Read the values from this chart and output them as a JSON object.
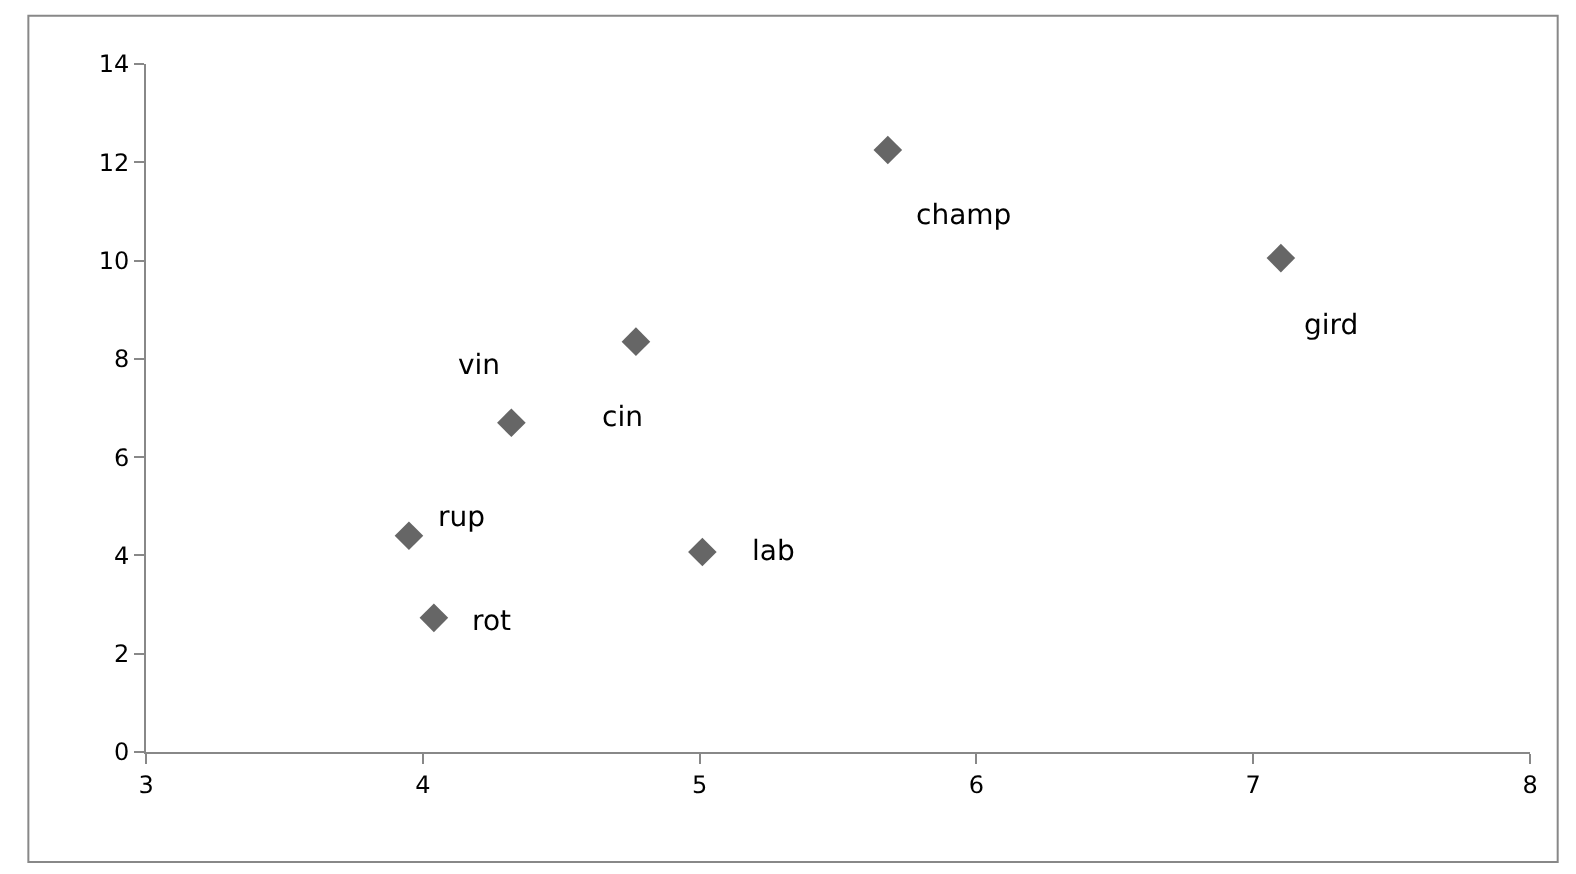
{
  "chart_data": {
    "type": "scatter",
    "x": [
      5.68,
      7.1,
      4.77,
      4.32,
      3.95,
      5.01,
      4.04
    ],
    "values": [
      12.25,
      10.05,
      8.35,
      6.7,
      4.4,
      4.07,
      2.73
    ],
    "color": "#666666",
    "marker": "diamond",
    "legend": false,
    "xlim": [
      3,
      8
    ],
    "xticks": [
      3,
      4,
      5,
      6,
      7,
      8
    ],
    "ylim": [
      0,
      14
    ],
    "yticks": [
      0,
      2,
      4,
      6,
      8,
      10,
      12,
      14
    ],
    "annotations": [
      {
        "text": "champ",
        "x": 5.68,
        "y": 12.25
      },
      {
        "text": "gird",
        "x": 7.1,
        "y": 10.05
      },
      {
        "text": "cin",
        "x": 4.77,
        "y": 8.35
      },
      {
        "text": "vin",
        "x": 4.32,
        "y": 6.7
      },
      {
        "text": "rup",
        "x": 3.95,
        "y": 4.4
      },
      {
        "text": "lab",
        "x": 5.01,
        "y": 4.07
      },
      {
        "text": "rot",
        "x": 4.04,
        "y": 2.73
      }
    ]
  }
}
